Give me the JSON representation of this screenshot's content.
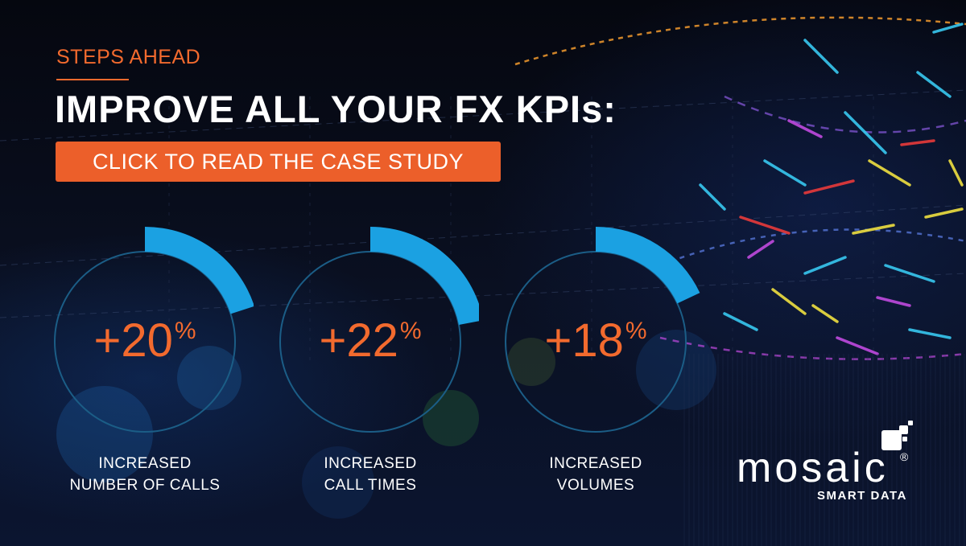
{
  "banner": {
    "eyebrow": "STEPS AHEAD",
    "headline": "IMPROVE ALL YOUR FX KPIs:",
    "cta_label": "CLICK TO READ THE CASE STUDY"
  },
  "kpis": [
    {
      "value": "+20",
      "unit": "%",
      "label_line1": "INCREASED",
      "label_line2": "NUMBER OF CALLS",
      "arc_fraction": 0.2
    },
    {
      "value": "+22",
      "unit": "%",
      "label_line1": "INCREASED",
      "label_line2": "CALL TIMES",
      "arc_fraction": 0.22
    },
    {
      "value": "+18",
      "unit": "%",
      "label_line1": "INCREASED",
      "label_line2": "VOLUMES",
      "arc_fraction": 0.18
    }
  ],
  "logo": {
    "wordmark": "mosaic",
    "registered": "®",
    "tagline": "SMART DATA"
  },
  "colors": {
    "accent_orange": "#f26a2e",
    "cta_orange": "#ec5f2a",
    "gauge_blue": "#1ba1e2",
    "ring_teal": "#1b5d86",
    "background": "#060a18"
  }
}
